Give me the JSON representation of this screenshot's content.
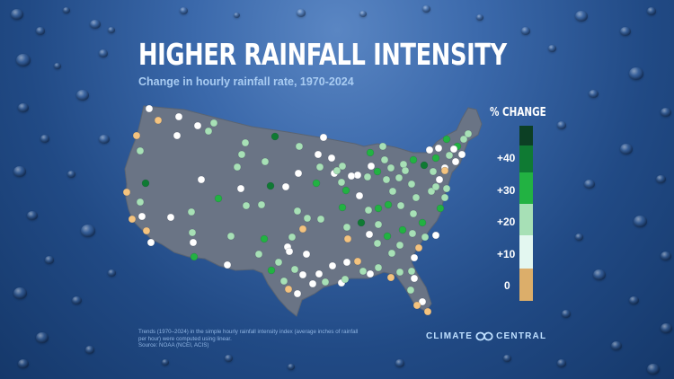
{
  "title": "HIGHER RAINFALL INTENSITY",
  "subtitle": "Change in hourly rainfall rate, 1970-2024",
  "legend": {
    "title": "% CHANGE",
    "labels": [
      "+40",
      "+30",
      "+20",
      "+10",
      "0"
    ],
    "bins": [
      {
        "range": "> +40",
        "color": "#0c3f24"
      },
      {
        "range": "+30 to +40",
        "color": "#0f7a33"
      },
      {
        "range": "+20 to +30",
        "color": "#22b242"
      },
      {
        "range": "+10 to +20",
        "color": "#a7e0b6"
      },
      {
        "range": "0 to +10",
        "color": "#e3f7f0"
      },
      {
        "range": "< 0",
        "color": "#dcae6a"
      }
    ]
  },
  "map": {
    "region": "Contiguous United States",
    "land_color": "#6a7485",
    "station_colors": {
      "white": "#ffffff",
      "pale_green": "#a7e0b6",
      "green": "#22b242",
      "dark_green": "#0f7a33",
      "negative": "#f4c37f"
    }
  },
  "footnote": {
    "line1": "Trends (1970–2024) in the simple hourly rainfall intensity index (average inches of rainfall per hour) were computed using linear.",
    "line2": "Source: NOAA (NCEI, ACIS)"
  },
  "brand": {
    "left": "CLIMATE",
    "right": "CENTRAL"
  }
}
